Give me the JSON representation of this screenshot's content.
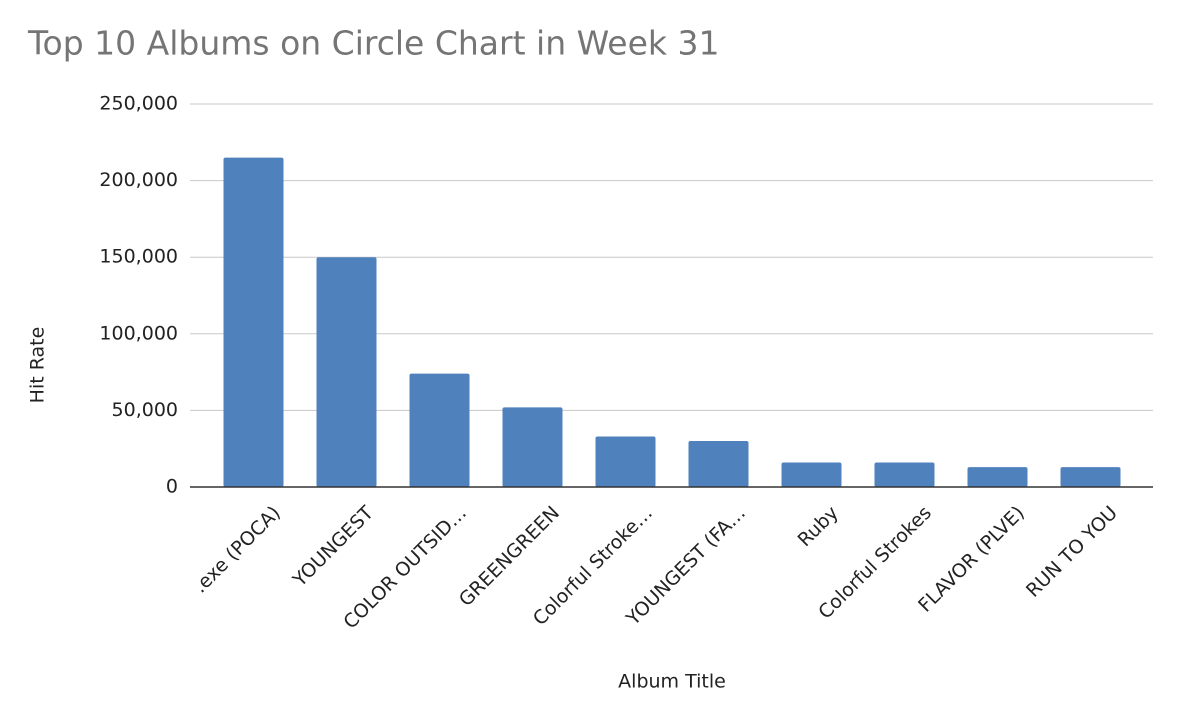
{
  "chart_data": {
    "type": "bar",
    "title": "Top 10 Albums on Circle Chart in Week 31",
    "x_label": "Album Title",
    "y_label": "Hit Rate",
    "categories": [
      ".exe (POCA)",
      "YOUNGEST",
      "COLOR OUTSID…",
      "GREENGREEN",
      "Colorful Stroke…",
      "YOUNGEST (FA…",
      "Ruby",
      "Colorful Strokes",
      "FLAVOR (PLVE)",
      "RUN TO YOU"
    ],
    "values": [
      215000,
      150000,
      74000,
      52000,
      33000,
      30000,
      16000,
      16000,
      13000,
      13000
    ],
    "color": "#4f81bd",
    "ylim": [
      0,
      250000
    ],
    "yticks": [
      0,
      {
        "value": 50000,
        "label": "50,000"
      },
      {
        "value": 100000,
        "label": "100,000"
      },
      {
        "value": 150000,
        "label": "150,000"
      },
      {
        "value": 200000,
        "label": "200,000"
      },
      {
        "value": 250000,
        "label": "250,000"
      }
    ],
    "grid": true
  }
}
